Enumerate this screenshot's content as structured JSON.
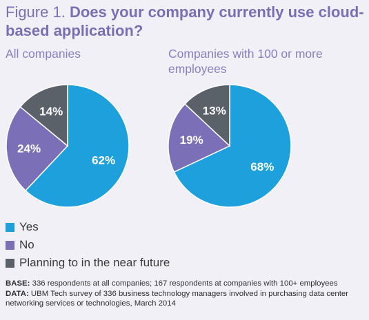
{
  "figure_label": "Figure 1.",
  "question": "Does your company currently use cloud-based application?",
  "chart_data": [
    {
      "type": "pie",
      "title": "All companies",
      "slices": [
        {
          "label": "Yes",
          "value": 62,
          "display": "62%",
          "color": "#1ea0dc"
        },
        {
          "label": "No",
          "value": 24,
          "display": "24%",
          "color": "#7b6fb8"
        },
        {
          "label": "Planning to in the near future",
          "value": 14,
          "display": "14%",
          "color": "#5b6169"
        }
      ]
    },
    {
      "type": "pie",
      "title": "Companies with 100 or more employees",
      "slices": [
        {
          "label": "Yes",
          "value": 68,
          "display": "68%",
          "color": "#1ea0dc"
        },
        {
          "label": "No",
          "value": 19,
          "display": "19%",
          "color": "#7b6fb8"
        },
        {
          "label": "Planning to in the near future",
          "value": 13,
          "display": "13%",
          "color": "#5b6169"
        }
      ]
    }
  ],
  "legend": [
    {
      "label": "Yes",
      "color": "#1ea0dc"
    },
    {
      "label": "No",
      "color": "#7b6fb8"
    },
    {
      "label": "Planning to in the near future",
      "color": "#5b6169"
    }
  ],
  "notes": {
    "base_label": "BASE:",
    "base_text": " 336 respondents at all companies; 167 respondents at companies with 100+ employees",
    "data_label": "DATA:",
    "data_text": " UBM Tech survey of 336 business technology managers involved in purchasing data center networking services or technologies, March 2014"
  }
}
